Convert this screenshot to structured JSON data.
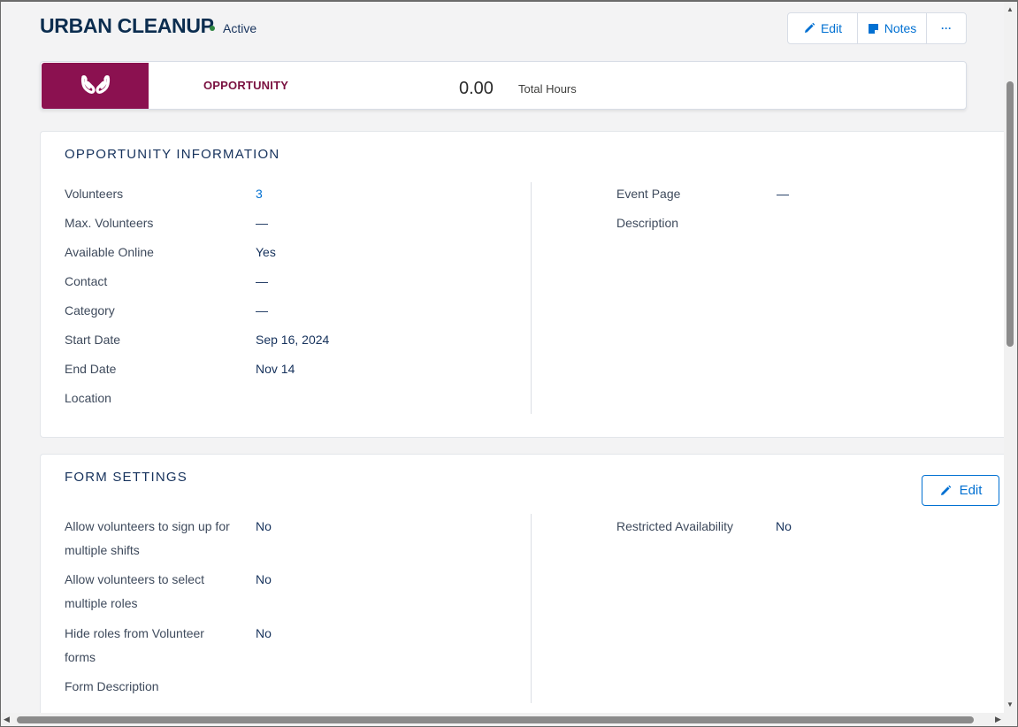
{
  "header": {
    "title": "URBAN CLEANUP",
    "status": "Active",
    "buttons": {
      "edit": "Edit",
      "notes": "Notes",
      "more": "···"
    }
  },
  "highlight": {
    "type_label": "OPPORTUNITY",
    "total_hours_value": "0.00",
    "total_hours_label": "Total Hours",
    "icon": "hands-icon",
    "icon_bg": "#8b1150"
  },
  "opportunity_info": {
    "title": "OPPORTUNITY INFORMATION",
    "left": [
      {
        "label": "Volunteers",
        "value": "3"
      },
      {
        "label": "Max. Volunteers",
        "value": "—"
      },
      {
        "label": "Available Online",
        "value": "Yes"
      },
      {
        "label": "Contact",
        "value": "—"
      },
      {
        "label": "Category",
        "value": "—"
      },
      {
        "label": "Start Date",
        "value": "Sep 16, 2024"
      },
      {
        "label": "End Date",
        "value": "Nov 14"
      },
      {
        "label": "Location",
        "value": ""
      }
    ],
    "right": [
      {
        "label": "Event Page",
        "value": "—"
      },
      {
        "label": "Description",
        "value": ""
      }
    ]
  },
  "form_settings": {
    "title": "FORM SETTINGS",
    "edit_label": "Edit",
    "left": [
      {
        "label_line1": "Allow volunteers to sign up for",
        "label_line2": "multiple shifts",
        "value": "No"
      },
      {
        "label_line1": "Allow volunteers to select",
        "label_line2": "multiple roles",
        "value": "No"
      },
      {
        "label_line1": "Hide roles from Volunteer",
        "label_line2": "forms",
        "value": "No"
      },
      {
        "label_line1": "Form Description",
        "label_line2": "",
        "value": ""
      }
    ],
    "right": [
      {
        "label": "Restricted Availability",
        "value": "No"
      }
    ]
  },
  "colors": {
    "accent": "#0070d2",
    "brand": "#8b1150",
    "status_active": "#2e8540"
  }
}
